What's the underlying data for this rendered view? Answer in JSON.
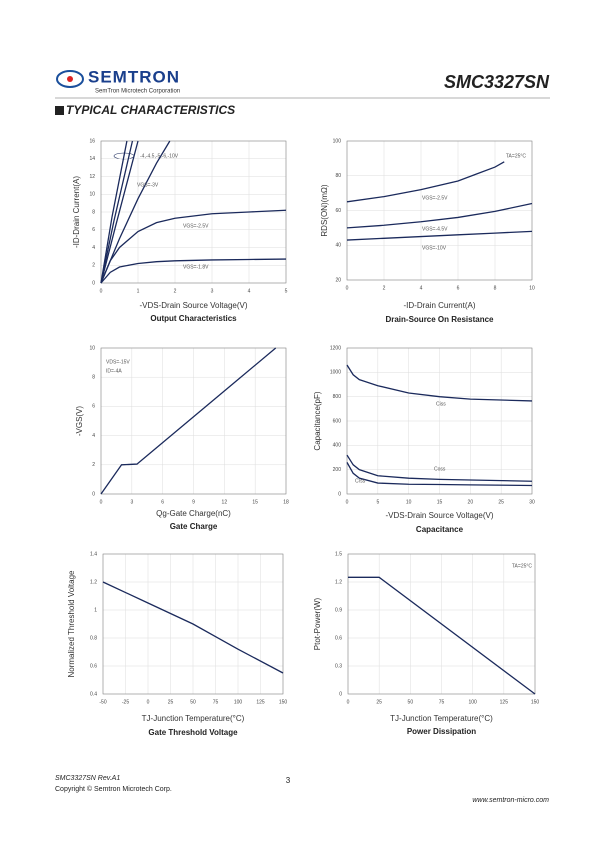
{
  "header": {
    "logo_name": "SEMTRON",
    "logo_sub": "SemTron Microtech Corporation",
    "part": "SMC3327SN"
  },
  "section_title": "TYPICAL CHARACTERISTICS",
  "chart_data": [
    {
      "type": "line",
      "title": "Output Characteristics",
      "xlabel": "-VDS-Drain Source Voltage(V)",
      "ylabel": "-ID-Drain Current(A)",
      "xlim": [
        0,
        5
      ],
      "ylim": [
        0,
        16
      ],
      "xticks": [
        0,
        1,
        2,
        3,
        4,
        5
      ],
      "yticks": [
        0,
        2,
        4,
        6,
        8,
        10,
        12,
        14,
        16
      ],
      "color": "#1b2a5c",
      "series": [
        {
          "name": "-4,-4.5,-5,-6,-10V",
          "x": [
            0,
            0.3,
            0.7
          ],
          "values": [
            0,
            7.5,
            16
          ]
        },
        {
          "x": [
            0,
            0.35,
            0.85
          ],
          "values": [
            0,
            7,
            16
          ]
        },
        {
          "x": [
            0,
            0.4,
            1.0
          ],
          "values": [
            0,
            6.5,
            16
          ]
        },
        {
          "name": "VGS=-3V",
          "x": [
            0,
            0.5,
            1,
            1.5,
            1.86
          ],
          "values": [
            0,
            5,
            9.5,
            13.5,
            16
          ]
        },
        {
          "name": "VGS=-2.5V",
          "x": [
            0,
            0.25,
            0.5,
            1,
            1.5,
            2,
            3,
            4,
            5
          ],
          "values": [
            0,
            2.5,
            4,
            5.8,
            6.8,
            7.3,
            7.8,
            8,
            8.2
          ]
        },
        {
          "name": "VGS=-1.8V",
          "x": [
            0,
            0.25,
            0.5,
            1,
            1.5,
            2,
            3,
            4,
            5
          ],
          "values": [
            0,
            1.2,
            1.8,
            2.2,
            2.4,
            2.5,
            2.6,
            2.65,
            2.7
          ]
        }
      ]
    },
    {
      "type": "line",
      "title": "Drain-Source On Resistance",
      "xlabel": "-ID-Drain Current(A)",
      "ylabel": "RDS(ON)(mΩ)",
      "xlim": [
        0,
        10
      ],
      "ylim": [
        20,
        100
      ],
      "xticks": [
        0,
        2,
        4,
        6,
        8,
        10
      ],
      "yticks": [
        20,
        40,
        60,
        80,
        100
      ],
      "color": "#1b2a5c",
      "annotations": [
        "TA=25°C"
      ],
      "series": [
        {
          "name": "VGS=-2.5V",
          "x": [
            0,
            2,
            4,
            6,
            7,
            8,
            8.5
          ],
          "values": [
            65,
            68,
            72,
            77,
            81,
            85,
            88
          ]
        },
        {
          "name": "VGS=-4.5V",
          "x": [
            0,
            2,
            4,
            6,
            8,
            10
          ],
          "values": [
            50,
            51.5,
            53.5,
            56,
            59.5,
            64
          ]
        },
        {
          "name": "VGS=-10V",
          "x": [
            0,
            2,
            4,
            6,
            8,
            10
          ],
          "values": [
            43,
            44,
            45,
            46,
            47,
            48
          ]
        }
      ]
    },
    {
      "type": "line",
      "title": "Gate Charge",
      "xlabel": "Qg-Gate Charge(nC)",
      "ylabel": "-VGS(V)",
      "xlim": [
        0,
        18
      ],
      "ylim": [
        0,
        10
      ],
      "xticks": [
        0,
        3,
        6,
        9,
        12,
        15,
        18
      ],
      "yticks": [
        0,
        2,
        4,
        6,
        8,
        10
      ],
      "color": "#1b2a5c",
      "annotations": [
        "VDS=-15V",
        "ID=-4A"
      ],
      "series": [
        {
          "x": [
            0,
            2,
            3.5,
            17
          ],
          "values": [
            0,
            2,
            2.05,
            10
          ]
        }
      ]
    },
    {
      "type": "line",
      "title": "Capacitance",
      "xlabel": "-VDS-Drain Source Voltage(V)",
      "ylabel": "Capacitance(pF)",
      "xlim": [
        0,
        30
      ],
      "ylim": [
        0,
        1200
      ],
      "xticks": [
        0,
        5,
        10,
        15,
        20,
        25,
        30
      ],
      "yticks": [
        0,
        200,
        400,
        600,
        800,
        1000,
        1200
      ],
      "color": "#1b2a5c",
      "series": [
        {
          "name": "Ciss",
          "x": [
            0,
            1,
            2,
            5,
            10,
            15,
            20,
            30
          ],
          "values": [
            1060,
            980,
            940,
            890,
            830,
            800,
            780,
            765
          ]
        },
        {
          "name": "Coss",
          "x": [
            0,
            1,
            2,
            5,
            10,
            15,
            20,
            30
          ],
          "values": [
            320,
            240,
            200,
            150,
            130,
            120,
            115,
            105
          ]
        },
        {
          "name": "Crss",
          "x": [
            0,
            1,
            2,
            5,
            10,
            15,
            20,
            30
          ],
          "values": [
            260,
            170,
            130,
            90,
            80,
            78,
            75,
            70
          ]
        }
      ]
    },
    {
      "type": "line",
      "title": "Gate Threshold Voltage",
      "xlabel": "TJ-Junction Temperature(°C)",
      "ylabel": "Normalized Threshold Voltage",
      "xlim": [
        -50,
        150
      ],
      "ylim": [
        0.4,
        1.4
      ],
      "xticks": [
        -50,
        -25,
        0,
        25,
        50,
        75,
        100,
        125,
        150
      ],
      "yticks": [
        0.4,
        0.6,
        0.8,
        1,
        1.2,
        1.4
      ],
      "color": "#1b2a5c",
      "series": [
        {
          "x": [
            -50,
            0,
            50,
            100,
            150
          ],
          "values": [
            1.2,
            1.05,
            0.9,
            0.72,
            0.55
          ]
        }
      ]
    },
    {
      "type": "line",
      "title": "Power Dissipation",
      "xlabel": "TJ-Junction Temperature(°C)",
      "ylabel": "Ptot-Power(W)",
      "xlim": [
        0,
        150
      ],
      "ylim": [
        0,
        1.5
      ],
      "xticks": [
        0,
        25,
        50,
        75,
        100,
        125,
        150
      ],
      "yticks": [
        0,
        0.3,
        0.6,
        0.9,
        1.2,
        1.5
      ],
      "color": "#1b2a5c",
      "annotations": [
        "TA=25°C"
      ],
      "series": [
        {
          "x": [
            0,
            25,
            150
          ],
          "values": [
            1.25,
            1.25,
            0
          ]
        }
      ]
    }
  ],
  "footer": {
    "revision": "SMC3327SN Rev.A1",
    "copyright": "Copyright © Semtron Microtech Corp.",
    "page": "3",
    "url": "www.semtron-micro.com"
  }
}
